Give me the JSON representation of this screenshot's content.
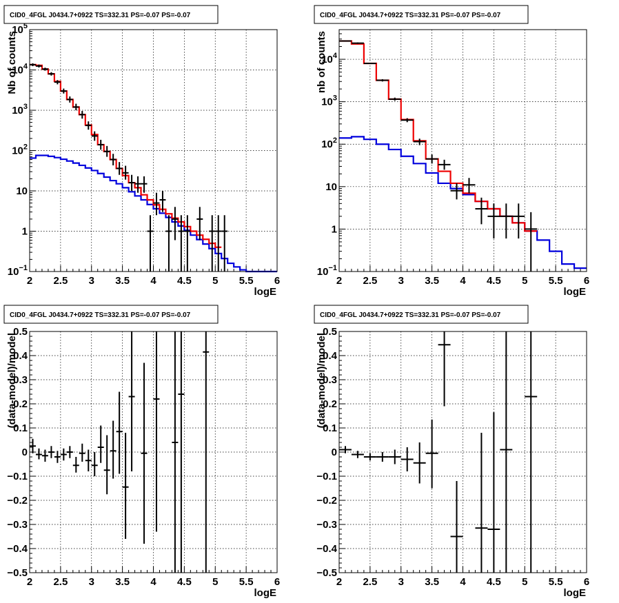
{
  "colors": {
    "data": "#000000",
    "total_model": "#ee0000",
    "component_model": "#0000dd",
    "grid": "#000000"
  },
  "chart_data": [
    {
      "type": "line",
      "title": "CID0_4FGL J0434.7+0922 TS=332.31 PS=-0.07 PS=-0.07",
      "xlabel": "logE",
      "ylabel": "Nb of counts",
      "xlim": [
        2,
        6
      ],
      "ylim": [
        0.1,
        100000
      ],
      "log_y": true,
      "grid": true,
      "xticks": [
        "2",
        "2.5",
        "3",
        "3.5",
        "4",
        "4.5",
        "5",
        "5.5",
        "6"
      ],
      "yticks": [
        {
          "v": 0.1,
          "b": "10",
          "e": "−1"
        },
        {
          "v": 1,
          "b": "1",
          "e": ""
        },
        {
          "v": 10,
          "b": "10",
          "e": ""
        },
        {
          "v": 100,
          "b": "10",
          "e": "2"
        },
        {
          "v": 1000,
          "b": "10",
          "e": "3"
        },
        {
          "v": 10000,
          "b": "10",
          "e": "4"
        },
        {
          "v": 100000,
          "b": "10",
          "e": "5"
        }
      ],
      "step_width": 0.1,
      "series": [
        {
          "style": "step",
          "color": "#0000dd",
          "edges_start": 2.0,
          "values": [
            65,
            76,
            76,
            72,
            67,
            61,
            55,
            49,
            43,
            37,
            32,
            27,
            22,
            18,
            15,
            12,
            9.5,
            7.5,
            6,
            4.6,
            3.6,
            2.8,
            2.2,
            1.7,
            1.35,
            1.05,
            0.8,
            0.62,
            0.48,
            0.37,
            0.28,
            0.21,
            0.16,
            0.13,
            0.11,
            0.1,
            0.1,
            0.1,
            0.1,
            0.1
          ]
        },
        {
          "style": "step",
          "color": "#ee0000",
          "edges_start": 2.0,
          "values": [
            13500,
            13000,
            10500,
            8000,
            5200,
            3000,
            1850,
            1200,
            780,
            430,
            250,
            140,
            95,
            60,
            36,
            24,
            16,
            12,
            8,
            6,
            4.5,
            3.5,
            2.7,
            2.1,
            1.7,
            1.3,
            1.0,
            0.8,
            0.63,
            0.5,
            0.4
          ]
        },
        {
          "style": "points",
          "color": "#000000",
          "points": [
            {
              "x": 2.05,
              "y": 13500,
              "lo": 12400,
              "hi": 14600
            },
            {
              "x": 2.15,
              "y": 12500,
              "lo": 11500,
              "hi": 13600
            },
            {
              "x": 2.25,
              "y": 10500,
              "lo": 9600,
              "hi": 11400
            },
            {
              "x": 2.35,
              "y": 8000,
              "lo": 7250,
              "hi": 8800
            },
            {
              "x": 2.45,
              "y": 5000,
              "lo": 4400,
              "hi": 5600
            },
            {
              "x": 2.55,
              "y": 3000,
              "lo": 2600,
              "hi": 3450
            },
            {
              "x": 2.65,
              "y": 1850,
              "lo": 1550,
              "hi": 2200
            },
            {
              "x": 2.75,
              "y": 1200,
              "lo": 1000,
              "hi": 1450
            },
            {
              "x": 2.85,
              "y": 780,
              "lo": 620,
              "hi": 960
            },
            {
              "x": 2.95,
              "y": 420,
              "lo": 330,
              "hi": 530
            },
            {
              "x": 3.05,
              "y": 230,
              "lo": 175,
              "hi": 300
            },
            {
              "x": 3.15,
              "y": 140,
              "lo": 105,
              "hi": 185
            },
            {
              "x": 3.25,
              "y": 95,
              "lo": 70,
              "hi": 130
            },
            {
              "x": 3.35,
              "y": 60,
              "lo": 43,
              "hi": 83
            },
            {
              "x": 3.45,
              "y": 36,
              "lo": 25,
              "hi": 52
            },
            {
              "x": 3.55,
              "y": 28,
              "lo": 19,
              "hi": 42
            },
            {
              "x": 3.65,
              "y": 16,
              "lo": 10,
              "hi": 25
            },
            {
              "x": 3.75,
              "y": 15,
              "lo": 9,
              "hi": 23
            },
            {
              "x": 3.85,
              "y": 15,
              "lo": 9,
              "hi": 23
            },
            {
              "x": 3.95,
              "y": 1,
              "lo": 0.1,
              "hi": 2.5
            },
            {
              "x": 4.05,
              "y": 5,
              "lo": 2.5,
              "hi": 9
            },
            {
              "x": 4.15,
              "y": 6,
              "lo": 3,
              "hi": 10
            },
            {
              "x": 4.25,
              "y": 1,
              "lo": 0.1,
              "hi": 2.5
            },
            {
              "x": 4.35,
              "y": 2,
              "lo": 0.6,
              "hi": 4
            },
            {
              "x": 4.45,
              "y": 1,
              "lo": 0.1,
              "hi": 2.5
            },
            {
              "x": 4.55,
              "y": 1,
              "lo": 0.1,
              "hi": 2.5
            },
            {
              "x": 4.75,
              "y": 2,
              "lo": 0.6,
              "hi": 4
            },
            {
              "x": 4.95,
              "y": 1,
              "lo": 0.1,
              "hi": 2.5
            },
            {
              "x": 5.05,
              "y": 1,
              "lo": 0.1,
              "hi": 2.5
            },
            {
              "x": 5.15,
              "y": 1,
              "lo": 0.1,
              "hi": 2.5
            }
          ],
          "xerr": 0.05
        }
      ]
    },
    {
      "type": "line",
      "title": "CID0_4FGL J0434.7+0922 TS=332.31 PS=-0.07 PS=-0.07",
      "xlabel": "logE",
      "ylabel": "nb of counts",
      "xlim": [
        2,
        6
      ],
      "ylim": [
        0.1,
        50000
      ],
      "log_y": true,
      "grid": true,
      "xticks": [
        "2",
        "2.5",
        "3",
        "3.5",
        "4",
        "4.5",
        "5",
        "5.5",
        "6"
      ],
      "yticks": [
        {
          "v": 0.1,
          "b": "10",
          "e": "−1"
        },
        {
          "v": 1,
          "b": "1",
          "e": ""
        },
        {
          "v": 10,
          "b": "10",
          "e": ""
        },
        {
          "v": 100,
          "b": "10",
          "e": "2"
        },
        {
          "v": 1000,
          "b": "10",
          "e": "3"
        },
        {
          "v": 10000,
          "b": "10",
          "e": "4"
        }
      ],
      "step_width": 0.2,
      "series": [
        {
          "style": "step",
          "color": "#0000dd",
          "edges_start": 2.0,
          "values": [
            140,
            150,
            130,
            100,
            75,
            52,
            35,
            21,
            12,
            9,
            6.5,
            4.5,
            3,
            2,
            1.4,
            0.9,
            0.55,
            0.3,
            0.15,
            0.12
          ]
        },
        {
          "style": "step",
          "color": "#ee0000",
          "edges_start": 2.0,
          "values": [
            27000,
            23000,
            8000,
            3200,
            1150,
            380,
            120,
            45,
            23,
            12,
            7,
            4.5,
            3,
            2,
            1.4,
            0.9
          ]
        },
        {
          "style": "points",
          "color": "#000000",
          "points": [
            {
              "x": 2.1,
              "y": 27000,
              "lo": 26000,
              "hi": 28000
            },
            {
              "x": 2.3,
              "y": 24000,
              "lo": 23000,
              "hi": 25000
            },
            {
              "x": 2.5,
              "y": 8000,
              "lo": 7700,
              "hi": 8300
            },
            {
              "x": 2.7,
              "y": 3200,
              "lo": 3000,
              "hi": 3400
            },
            {
              "x": 2.9,
              "y": 1150,
              "lo": 1060,
              "hi": 1250
            },
            {
              "x": 3.1,
              "y": 370,
              "lo": 330,
              "hi": 410
            },
            {
              "x": 3.3,
              "y": 115,
              "lo": 95,
              "hi": 135
            },
            {
              "x": 3.5,
              "y": 45,
              "lo": 35,
              "hi": 57
            },
            {
              "x": 3.7,
              "y": 33,
              "lo": 25,
              "hi": 43
            },
            {
              "x": 3.9,
              "y": 8,
              "lo": 5,
              "hi": 12
            },
            {
              "x": 4.1,
              "y": 11,
              "lo": 7,
              "hi": 16
            },
            {
              "x": 4.3,
              "y": 3,
              "lo": 1.3,
              "hi": 5.5
            },
            {
              "x": 4.5,
              "y": 2,
              "lo": 0.6,
              "hi": 4
            },
            {
              "x": 4.7,
              "y": 2,
              "lo": 0.6,
              "hi": 4
            },
            {
              "x": 4.9,
              "y": 2,
              "lo": 0.6,
              "hi": 4
            },
            {
              "x": 5.1,
              "y": 1,
              "lo": 0.1,
              "hi": 2.5
            }
          ],
          "xerr": 0.1
        }
      ]
    },
    {
      "type": "scatter",
      "title": "CID0_4FGL J0434.7+0922 TS=332.31 PS=-0.07 PS=-0.07",
      "xlabel": "logE",
      "ylabel": "(data-model)/model",
      "xlim": [
        2,
        6
      ],
      "ylim": [
        -0.5,
        0.5
      ],
      "log_y": false,
      "grid": true,
      "xticks": [
        "2",
        "2.5",
        "3",
        "3.5",
        "4",
        "4.5",
        "5",
        "5.5",
        "6"
      ],
      "yticks": [
        {
          "v": -0.5,
          "b": "−0.5",
          "e": ""
        },
        {
          "v": -0.4,
          "b": "−0.4",
          "e": ""
        },
        {
          "v": -0.3,
          "b": "−0.3",
          "e": ""
        },
        {
          "v": -0.2,
          "b": "−0.2",
          "e": ""
        },
        {
          "v": -0.1,
          "b": "−0.1",
          "e": ""
        },
        {
          "v": 0,
          "b": "0",
          "e": ""
        },
        {
          "v": 0.1,
          "b": "0.1",
          "e": ""
        },
        {
          "v": 0.2,
          "b": "0.2",
          "e": ""
        },
        {
          "v": 0.3,
          "b": "0.3",
          "e": ""
        },
        {
          "v": 0.4,
          "b": "0.4",
          "e": ""
        },
        {
          "v": 0.5,
          "b": "0.5",
          "e": ""
        }
      ],
      "series": [
        {
          "style": "points",
          "color": "#000000",
          "points": [
            {
              "x": 2.05,
              "y": 0.025,
              "lo": -0.005,
              "hi": 0.055
            },
            {
              "x": 2.15,
              "y": -0.01,
              "lo": -0.03,
              "hi": 0.015
            },
            {
              "x": 2.25,
              "y": -0.015,
              "lo": -0.04,
              "hi": 0.01
            },
            {
              "x": 2.35,
              "y": 0.0,
              "lo": -0.025,
              "hi": 0.025
            },
            {
              "x": 2.45,
              "y": -0.02,
              "lo": -0.045,
              "hi": 0.005
            },
            {
              "x": 2.55,
              "y": -0.01,
              "lo": -0.035,
              "hi": 0.015
            },
            {
              "x": 2.65,
              "y": 0.0,
              "lo": -0.025,
              "hi": 0.025
            },
            {
              "x": 2.75,
              "y": -0.055,
              "lo": -0.085,
              "hi": -0.02
            },
            {
              "x": 2.85,
              "y": -0.005,
              "lo": -0.04,
              "hi": 0.035
            },
            {
              "x": 2.95,
              "y": -0.035,
              "lo": -0.08,
              "hi": 0.01
            },
            {
              "x": 3.05,
              "y": -0.055,
              "lo": -0.1,
              "hi": 0.0
            },
            {
              "x": 3.15,
              "y": 0.02,
              "lo": -0.045,
              "hi": 0.11
            },
            {
              "x": 3.25,
              "y": -0.075,
              "lo": -0.175,
              "hi": 0.07
            },
            {
              "x": 3.35,
              "y": 0.005,
              "lo": -0.11,
              "hi": 0.13
            },
            {
              "x": 3.45,
              "y": 0.085,
              "lo": -0.09,
              "hi": 0.25
            },
            {
              "x": 3.55,
              "y": -0.145,
              "lo": -0.36,
              "hi": 0.08
            },
            {
              "x": 3.65,
              "y": 0.23,
              "lo": -0.08,
              "hi": 0.5
            },
            {
              "x": 3.85,
              "y": -0.005,
              "lo": -0.38,
              "hi": 0.37
            },
            {
              "x": 4.05,
              "y": 0.22,
              "lo": -0.33,
              "hi": 0.5
            },
            {
              "x": 4.35,
              "y": 0.04,
              "lo": -0.5,
              "hi": 0.5
            },
            {
              "x": 4.45,
              "y": 0.24,
              "lo": -0.5,
              "hi": 0.5
            },
            {
              "x": 4.85,
              "y": 0.415,
              "lo": -0.5,
              "hi": 0.5
            }
          ],
          "xerr": 0.05
        }
      ]
    },
    {
      "type": "scatter",
      "title": "CID0_4FGL J0434.7+0922 TS=332.31 PS=-0.07 PS=-0.07",
      "xlabel": "logE",
      "ylabel": "(data-model)/model",
      "xlim": [
        2,
        6
      ],
      "ylim": [
        -0.5,
        0.5
      ],
      "log_y": false,
      "grid": true,
      "xticks": [
        "2",
        "2.5",
        "3",
        "3.5",
        "4",
        "4.5",
        "5",
        "5.5",
        "6"
      ],
      "yticks": [
        {
          "v": -0.5,
          "b": "−0.5",
          "e": ""
        },
        {
          "v": -0.4,
          "b": "−0.4",
          "e": ""
        },
        {
          "v": -0.3,
          "b": "−0.3",
          "e": ""
        },
        {
          "v": -0.2,
          "b": "−0.2",
          "e": ""
        },
        {
          "v": -0.1,
          "b": "−0.1",
          "e": ""
        },
        {
          "v": 0,
          "b": "0",
          "e": ""
        },
        {
          "v": 0.1,
          "b": "0.1",
          "e": ""
        },
        {
          "v": 0.2,
          "b": "0.2",
          "e": ""
        },
        {
          "v": 0.3,
          "b": "0.3",
          "e": ""
        },
        {
          "v": 0.4,
          "b": "0.4",
          "e": ""
        },
        {
          "v": 0.5,
          "b": "0.5",
          "e": ""
        }
      ],
      "series": [
        {
          "style": "points",
          "color": "#000000",
          "points": [
            {
              "x": 2.1,
              "y": 0.01,
              "lo": -0.005,
              "hi": 0.025
            },
            {
              "x": 2.3,
              "y": -0.01,
              "lo": -0.025,
              "hi": 0.005
            },
            {
              "x": 2.5,
              "y": -0.02,
              "lo": -0.035,
              "hi": -0.005
            },
            {
              "x": 2.7,
              "y": -0.02,
              "lo": -0.04,
              "hi": 0.0
            },
            {
              "x": 2.9,
              "y": -0.02,
              "lo": -0.05,
              "hi": 0.01
            },
            {
              "x": 3.1,
              "y": -0.03,
              "lo": -0.08,
              "hi": 0.02
            },
            {
              "x": 3.3,
              "y": -0.045,
              "lo": -0.13,
              "hi": 0.04
            },
            {
              "x": 3.5,
              "y": -0.005,
              "lo": -0.15,
              "hi": 0.135
            },
            {
              "x": 3.7,
              "y": 0.445,
              "lo": 0.19,
              "hi": 0.5
            },
            {
              "x": 3.9,
              "y": -0.35,
              "lo": -0.5,
              "hi": -0.12
            },
            {
              "x": 4.3,
              "y": -0.315,
              "lo": -0.5,
              "hi": 0.08
            },
            {
              "x": 4.5,
              "y": -0.32,
              "lo": -0.5,
              "hi": 0.165
            },
            {
              "x": 4.7,
              "y": 0.01,
              "lo": -0.5,
              "hi": 0.5
            },
            {
              "x": 5.1,
              "y": 0.23,
              "lo": -0.5,
              "hi": 0.5
            }
          ],
          "xerr": 0.1
        }
      ]
    }
  ]
}
